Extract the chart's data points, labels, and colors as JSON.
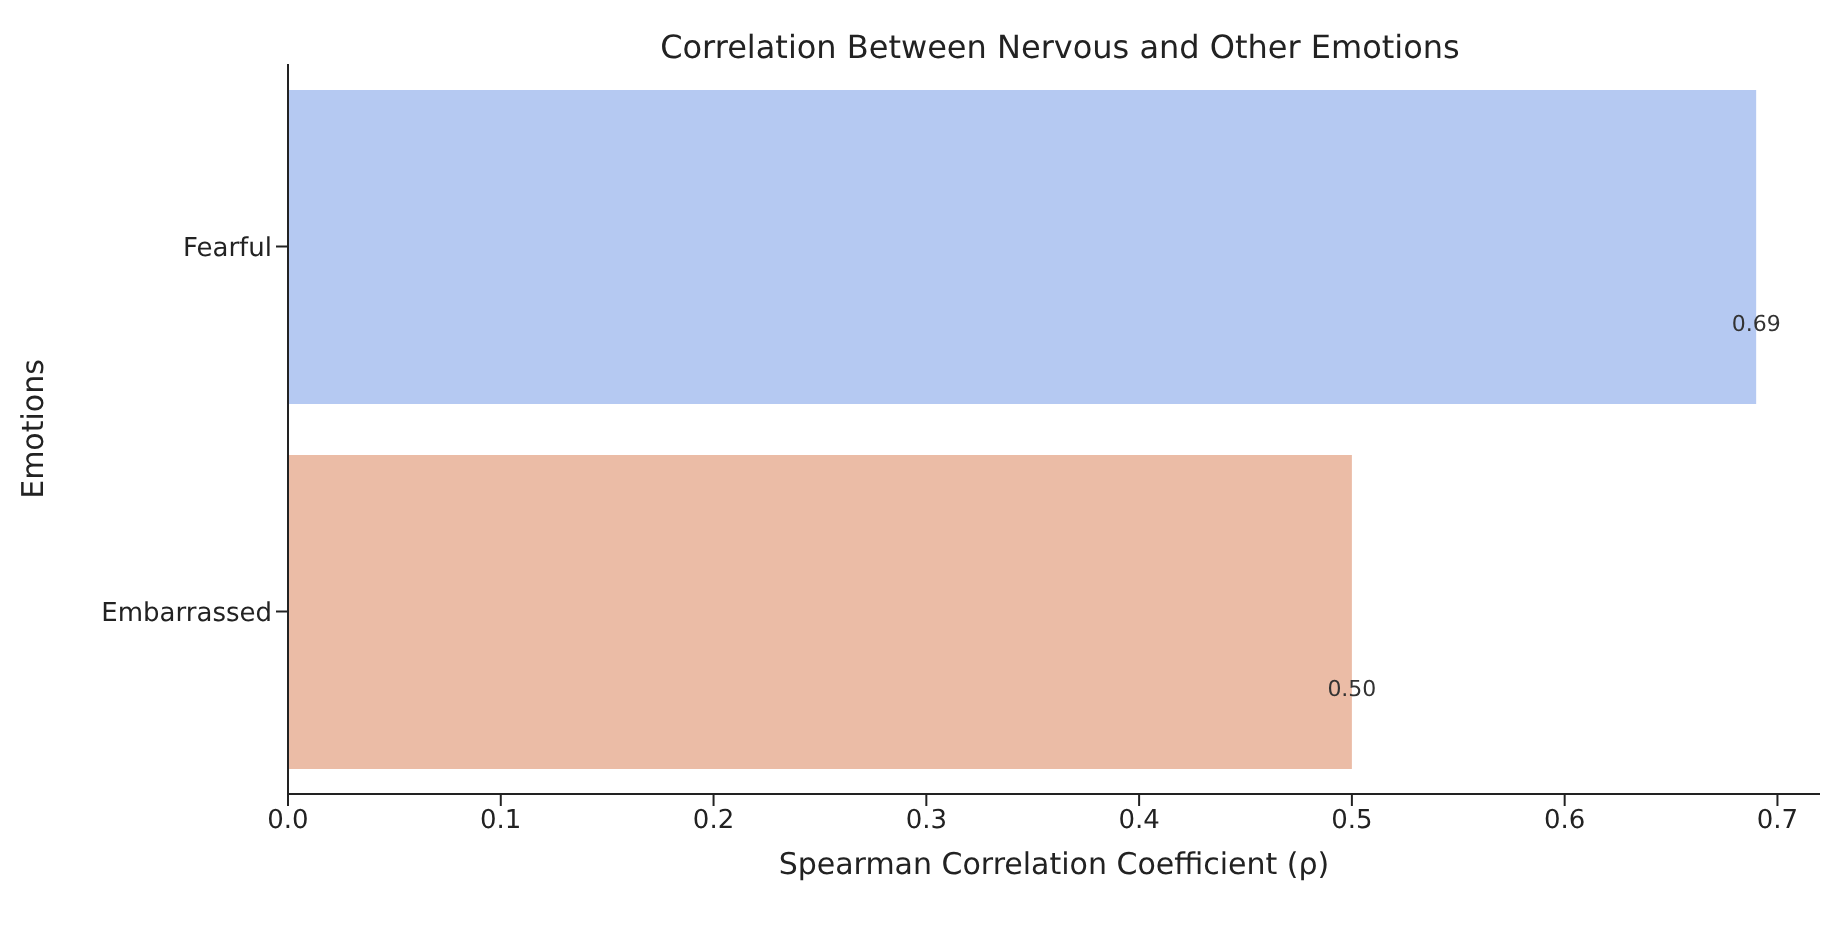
{
  "chart_data": {
    "type": "bar",
    "orientation": "horizontal",
    "title": "Correlation Between Nervous and Other Emotions",
    "xlabel": "Spearman Correlation Coefficient (ρ)",
    "ylabel": "Emotions",
    "categories": [
      "Fearful",
      "Embarrassed"
    ],
    "values": [
      0.69,
      0.5
    ],
    "colors": [
      "#b5c9f2",
      "#ebbca6"
    ],
    "value_labels": [
      "0.69",
      "0.50"
    ],
    "xlim": [
      0,
      0.72
    ],
    "xticks": [
      {
        "value": 0,
        "label": "0.0"
      },
      0.1,
      0.2,
      0.3,
      0.4,
      0.5,
      0.6,
      0.7
    ],
    "grid": false
  }
}
